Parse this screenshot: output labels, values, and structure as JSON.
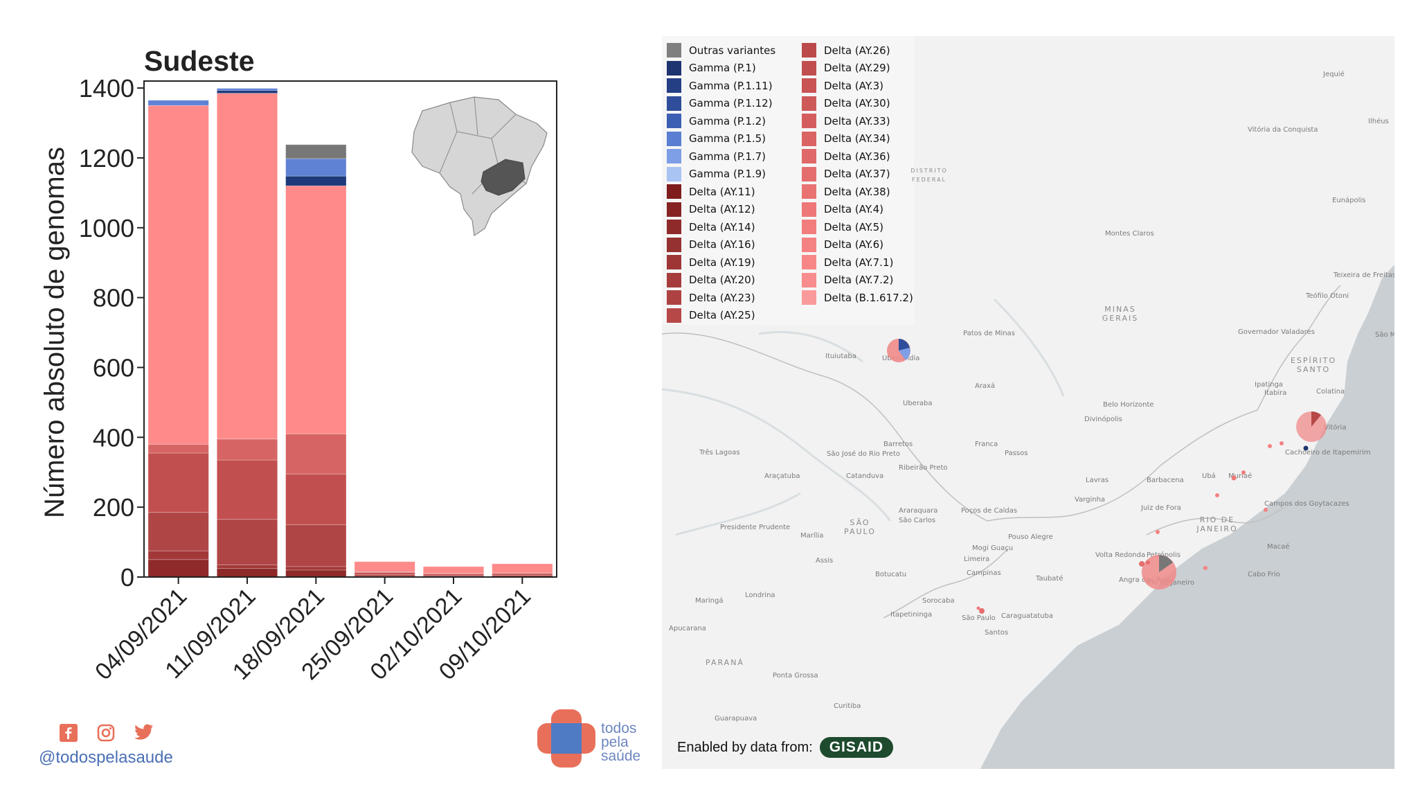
{
  "chart_data": {
    "type": "bar",
    "stacked": true,
    "title": "Sudeste",
    "ylabel": "Número absoluto de genomas",
    "xlabel": "",
    "ylim": [
      0,
      1420
    ],
    "yticks": [
      0,
      200,
      400,
      600,
      800,
      1000,
      1200,
      1400
    ],
    "grid": false,
    "categories": [
      "04/09/2021",
      "11/09/2021",
      "18/09/2021",
      "25/09/2021",
      "02/10/2021",
      "09/10/2021"
    ],
    "series": [
      {
        "name": "Delta (AY.11)",
        "color": "#8e2a2a",
        "values": [
          50,
          25,
          20,
          2,
          1,
          1
        ]
      },
      {
        "name": "Delta (AY.14)",
        "color": "#a33838",
        "values": [
          25,
          10,
          10,
          0,
          0,
          0
        ]
      },
      {
        "name": "Delta (AY.19)",
        "color": "#b04545",
        "values": [
          110,
          130,
          120,
          5,
          3,
          4
        ]
      },
      {
        "name": "Delta (AY.25)",
        "color": "#c24f4f",
        "values": [
          170,
          170,
          145,
          6,
          5,
          5
        ]
      },
      {
        "name": "Delta (AY.33)",
        "color": "#d76464",
        "values": [
          25,
          60,
          115,
          2,
          2,
          2
        ]
      },
      {
        "name": "Delta (B.1.617.2)",
        "color": "#ff8a8a",
        "values": [
          970,
          990,
          710,
          29,
          19,
          26
        ]
      },
      {
        "name": "Gamma (P.1)",
        "color": "#1f3a7a",
        "values": [
          0,
          8,
          28,
          0,
          0,
          0
        ]
      },
      {
        "name": "Gamma (P.1.5)",
        "color": "#5f82d4",
        "values": [
          15,
          6,
          50,
          0,
          0,
          0
        ]
      },
      {
        "name": "Outras variantes",
        "color": "#777777",
        "values": [
          0,
          0,
          40,
          0,
          0,
          0
        ]
      }
    ]
  },
  "legend": {
    "col1": [
      {
        "label": "Outras variantes",
        "color": "#7f7f7f"
      },
      {
        "label": "Gamma (P.1)",
        "color": "#1d3470"
      },
      {
        "label": "Gamma (P.1.11)",
        "color": "#253f85"
      },
      {
        "label": "Gamma (P.1.12)",
        "color": "#2f4d9a"
      },
      {
        "label": "Gamma (P.1.2)",
        "color": "#3d5fb3"
      },
      {
        "label": "Gamma (P.1.5)",
        "color": "#5a7fd2"
      },
      {
        "label": "Gamma (P.1.7)",
        "color": "#7e9ee6"
      },
      {
        "label": "Gamma (P.1.9)",
        "color": "#a9c3f2"
      },
      {
        "label": "Delta (AY.11)",
        "color": "#7f1d1d"
      },
      {
        "label": "Delta (AY.12)",
        "color": "#862424"
      },
      {
        "label": "Delta (AY.14)",
        "color": "#8e2a2a"
      },
      {
        "label": "Delta (AY.16)",
        "color": "#963131"
      },
      {
        "label": "Delta (AY.19)",
        "color": "#9e3636"
      },
      {
        "label": "Delta (AY.20)",
        "color": "#a63c3c"
      },
      {
        "label": "Delta (AY.23)",
        "color": "#ae4242"
      },
      {
        "label": "Delta (AY.25)",
        "color": "#b64848"
      }
    ],
    "col2": [
      {
        "label": "Delta (AY.26)",
        "color": "#bc4a4a"
      },
      {
        "label": "Delta (AY.29)",
        "color": "#c24f4f"
      },
      {
        "label": "Delta (AY.3)",
        "color": "#c85454"
      },
      {
        "label": "Delta (AY.30)",
        "color": "#ce5959"
      },
      {
        "label": "Delta (AY.33)",
        "color": "#d45e5e"
      },
      {
        "label": "Delta (AY.34)",
        "color": "#da6363"
      },
      {
        "label": "Delta (AY.36)",
        "color": "#df6868"
      },
      {
        "label": "Delta (AY.37)",
        "color": "#e46e6e"
      },
      {
        "label": "Delta (AY.38)",
        "color": "#e97373"
      },
      {
        "label": "Delta (AY.4)",
        "color": "#ee7878"
      },
      {
        "label": "Delta (AY.5)",
        "color": "#f27d7d"
      },
      {
        "label": "Delta (AY.6)",
        "color": "#f58282"
      },
      {
        "label": "Delta (AY.7.1)",
        "color": "#f78787"
      },
      {
        "label": "Delta (AY.7.2)",
        "color": "#f98c8c"
      },
      {
        "label": "Delta (B.1.617.2)",
        "color": "#fb9a9a"
      }
    ]
  },
  "map": {
    "places": [
      {
        "name": "Jequié"
      },
      {
        "name": "Vitória da Conquista"
      },
      {
        "name": "Ilhéus"
      },
      {
        "name": "Eunápolis"
      },
      {
        "name": "Montes Claros"
      },
      {
        "name": "Teixeira de Freitas"
      },
      {
        "name": "Teófilo Otoni"
      },
      {
        "name": "Patos de Minas"
      },
      {
        "name": "Governador Valadares"
      },
      {
        "name": "São Mateus"
      },
      {
        "name": "Ituiutaba"
      },
      {
        "name": "Uberlândia"
      },
      {
        "name": "Uberaba"
      },
      {
        "name": "Araxá"
      },
      {
        "name": "Ipatinga"
      },
      {
        "name": "Itabira"
      },
      {
        "name": "Belo Horizonte"
      },
      {
        "name": "Colatina"
      },
      {
        "name": "Divinópolis"
      },
      {
        "name": "Vitória"
      },
      {
        "name": "Barretos"
      },
      {
        "name": "Franca"
      },
      {
        "name": "Passos"
      },
      {
        "name": "Três Lagoas"
      },
      {
        "name": "São José do Rio Preto"
      },
      {
        "name": "Cachoeiro de Itapemirim"
      },
      {
        "name": "Araçatuba"
      },
      {
        "name": "Catanduva"
      },
      {
        "name": "Ribeirão Preto"
      },
      {
        "name": "Lavras"
      },
      {
        "name": "Barbacena"
      },
      {
        "name": "Ubá"
      },
      {
        "name": "Muriaé"
      },
      {
        "name": "Varginha"
      },
      {
        "name": "Araraquara"
      },
      {
        "name": "São Carlos"
      },
      {
        "name": "Juiz de Fora"
      },
      {
        "name": "Campos dos Goytacazes"
      },
      {
        "name": "Presidente Prudente"
      },
      {
        "name": "Marília"
      },
      {
        "name": "Poços de Caldas"
      },
      {
        "name": "Pouso Alegre"
      },
      {
        "name": "Mogi Guaçu"
      },
      {
        "name": "Limeira"
      },
      {
        "name": "Volta Redonda"
      },
      {
        "name": "Petrópolis"
      },
      {
        "name": "Macaé"
      },
      {
        "name": "Assis"
      },
      {
        "name": "Campinas"
      },
      {
        "name": "Botucatu"
      },
      {
        "name": "Taubaté"
      },
      {
        "name": "Angra dos Reis"
      },
      {
        "name": "Rio de Janeiro"
      },
      {
        "name": "Cabo Frio"
      },
      {
        "name": "Maringá"
      },
      {
        "name": "Londrina"
      },
      {
        "name": "Sorocaba"
      },
      {
        "name": "Itapetininga"
      },
      {
        "name": "São Paulo"
      },
      {
        "name": "Caraguatatuba"
      },
      {
        "name": "Santos"
      },
      {
        "name": "Ponta Grossa"
      },
      {
        "name": "Curitiba"
      },
      {
        "name": "Guarapuava"
      },
      {
        "name": "Apucarana"
      }
    ],
    "regions": [
      {
        "name": "MINAS GERAIS"
      },
      {
        "name": "SÃO PAULO"
      },
      {
        "name": "RIO DE JANEIRO"
      },
      {
        "name": "ESPÍRITO SANTO"
      },
      {
        "name": "PARANÁ"
      },
      {
        "name": "DISTRITO FEDERAL"
      }
    ],
    "credit": "Enabled by data from:",
    "badge": "GISAID"
  },
  "footer": {
    "handle": "@todospelasaude",
    "logo": [
      "todos",
      "pela",
      "saúde"
    ]
  },
  "colors": {
    "delta_light": "#ff8a8a",
    "water": "#c8ced2",
    "land": "#f2f2f2",
    "logo_orange": "#e8705a",
    "logo_blue": "#4f7bc4"
  }
}
